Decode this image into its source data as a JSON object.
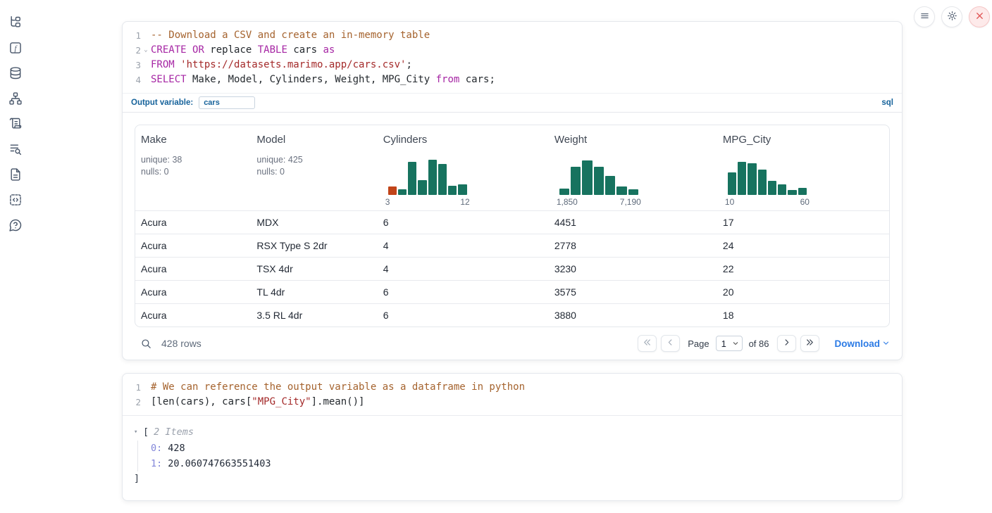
{
  "colors": {
    "hist_teal": "#17735f",
    "hist_highlight": "#c14419",
    "accent_blue": "#2c7be5",
    "label_blue": "#17639b",
    "shutdown_red": "#e05252"
  },
  "sidebar": {
    "icons": [
      "file-tree",
      "function-square",
      "database",
      "dependency-graph",
      "logs-scroll",
      "text-search",
      "document",
      "code-snippets",
      "help-bubble"
    ]
  },
  "toolbar": {
    "buttons": [
      "menu",
      "settings",
      "shutdown"
    ]
  },
  "sql_cell": {
    "lines": [
      {
        "num": "1",
        "tokens": [
          {
            "c": "comment",
            "t": "-- Download a CSV and create an in-memory table"
          }
        ]
      },
      {
        "num": "2",
        "fold": true,
        "tokens": [
          {
            "c": "kw",
            "t": "CREATE"
          },
          {
            "c": "plain",
            "t": " "
          },
          {
            "c": "kw",
            "t": "OR"
          },
          {
            "c": "plain",
            "t": " replace "
          },
          {
            "c": "kw",
            "t": "TABLE"
          },
          {
            "c": "plain",
            "t": " cars "
          },
          {
            "c": "kw",
            "t": "as"
          }
        ]
      },
      {
        "num": "3",
        "tokens": [
          {
            "c": "kw",
            "t": "FROM"
          },
          {
            "c": "plain",
            "t": " "
          },
          {
            "c": "str",
            "t": "'https://datasets.marimo.app/cars.csv'"
          },
          {
            "c": "plain",
            "t": ";"
          }
        ]
      },
      {
        "num": "4",
        "tokens": [
          {
            "c": "kw",
            "t": "SELECT"
          },
          {
            "c": "plain",
            "t": " Make, Model, Cylinders, Weight, MPG_City "
          },
          {
            "c": "kw",
            "t": "from"
          },
          {
            "c": "plain",
            "t": " cars;"
          }
        ]
      }
    ],
    "output_variable_label": "Output variable:",
    "output_variable_value": "cars",
    "language_badge": "sql"
  },
  "table": {
    "columns": [
      {
        "name": "Make",
        "stats": [
          "unique: 38",
          "nulls: 0"
        ]
      },
      {
        "name": "Model",
        "stats": [
          "unique: 425",
          "nulls: 0"
        ]
      },
      {
        "name": "Cylinders",
        "histogram": {
          "bars": [
            12,
            8,
            47,
            21,
            50,
            44,
            13,
            15
          ],
          "highlight_index": 0,
          "ticks": [
            "3",
            "12"
          ]
        }
      },
      {
        "name": "Weight",
        "histogram": {
          "bars": [
            9,
            40,
            49,
            40,
            27,
            12,
            8
          ],
          "ticks": [
            "1,850",
            "7,190"
          ]
        }
      },
      {
        "name": "MPG_City",
        "histogram": {
          "bars": [
            32,
            47,
            45,
            36,
            20,
            15,
            7,
            10
          ],
          "ticks": [
            "10",
            "60"
          ]
        }
      }
    ],
    "rows": [
      [
        "Acura",
        "MDX",
        "6",
        "4451",
        "17"
      ],
      [
        "Acura",
        "RSX Type S 2dr",
        "4",
        "2778",
        "24"
      ],
      [
        "Acura",
        "TSX 4dr",
        "4",
        "3230",
        "22"
      ],
      [
        "Acura",
        "TL 4dr",
        "6",
        "3575",
        "20"
      ],
      [
        "Acura",
        "3.5 RL 4dr",
        "6",
        "3880",
        "18"
      ]
    ],
    "footer": {
      "row_count": "428 rows",
      "page_label": "Page",
      "page_value": "1",
      "total_pages_label": "of 86",
      "download_label": "Download"
    }
  },
  "python_cell": {
    "lines": [
      {
        "num": "1",
        "tokens": [
          {
            "c": "comment",
            "t": "# We can reference the output variable as a dataframe in python"
          }
        ]
      },
      {
        "num": "2",
        "tokens": [
          {
            "c": "plain",
            "t": "[len(cars), cars["
          },
          {
            "c": "str",
            "t": "\"MPG_City\""
          },
          {
            "c": "plain",
            "t": "].mean()]"
          }
        ]
      }
    ]
  },
  "output_tree": {
    "open_bracket": "[",
    "items_label": "2 Items",
    "entries": [
      {
        "key": "0:",
        "value": "428"
      },
      {
        "key": "1:",
        "value": "20.060747663551403"
      }
    ],
    "close_bracket": "]"
  }
}
